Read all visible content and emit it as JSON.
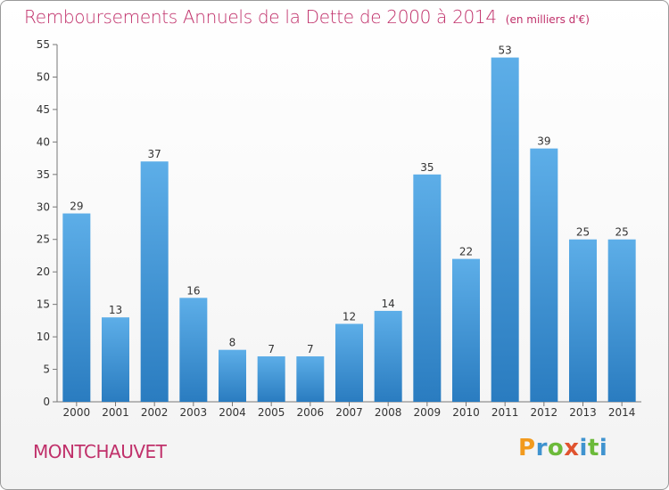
{
  "title": "Remboursements Annuels de la Dette de 2000 à 2014",
  "unit_note": "(en milliers d'€)",
  "commune": "MONTCHAUVET",
  "brand": {
    "letters": [
      "P",
      "r",
      "o",
      "x",
      "i",
      "t",
      "i"
    ],
    "colors": [
      "#f29a1d",
      "#3f93cf",
      "#6cba3a",
      "#e0532f",
      "#3f93cf",
      "#6cba3a",
      "#3f93cf"
    ]
  },
  "chart_data": {
    "type": "bar",
    "categories": [
      "2000",
      "2001",
      "2002",
      "2003",
      "2004",
      "2005",
      "2006",
      "2007",
      "2008",
      "2009",
      "2010",
      "2011",
      "2012",
      "2013",
      "2014"
    ],
    "values": [
      29,
      13,
      37,
      16,
      8,
      7,
      7,
      12,
      14,
      35,
      22,
      53,
      39,
      25,
      25
    ],
    "ylim": [
      0,
      55
    ],
    "yticks": [
      0,
      5,
      10,
      15,
      20,
      25,
      30,
      35,
      40,
      45,
      50,
      55
    ],
    "grid": false,
    "colors": {
      "bar_light": "#5daee8",
      "bar_dark": "#2a7cc0",
      "axis": "#777777",
      "label": "#333333"
    }
  }
}
